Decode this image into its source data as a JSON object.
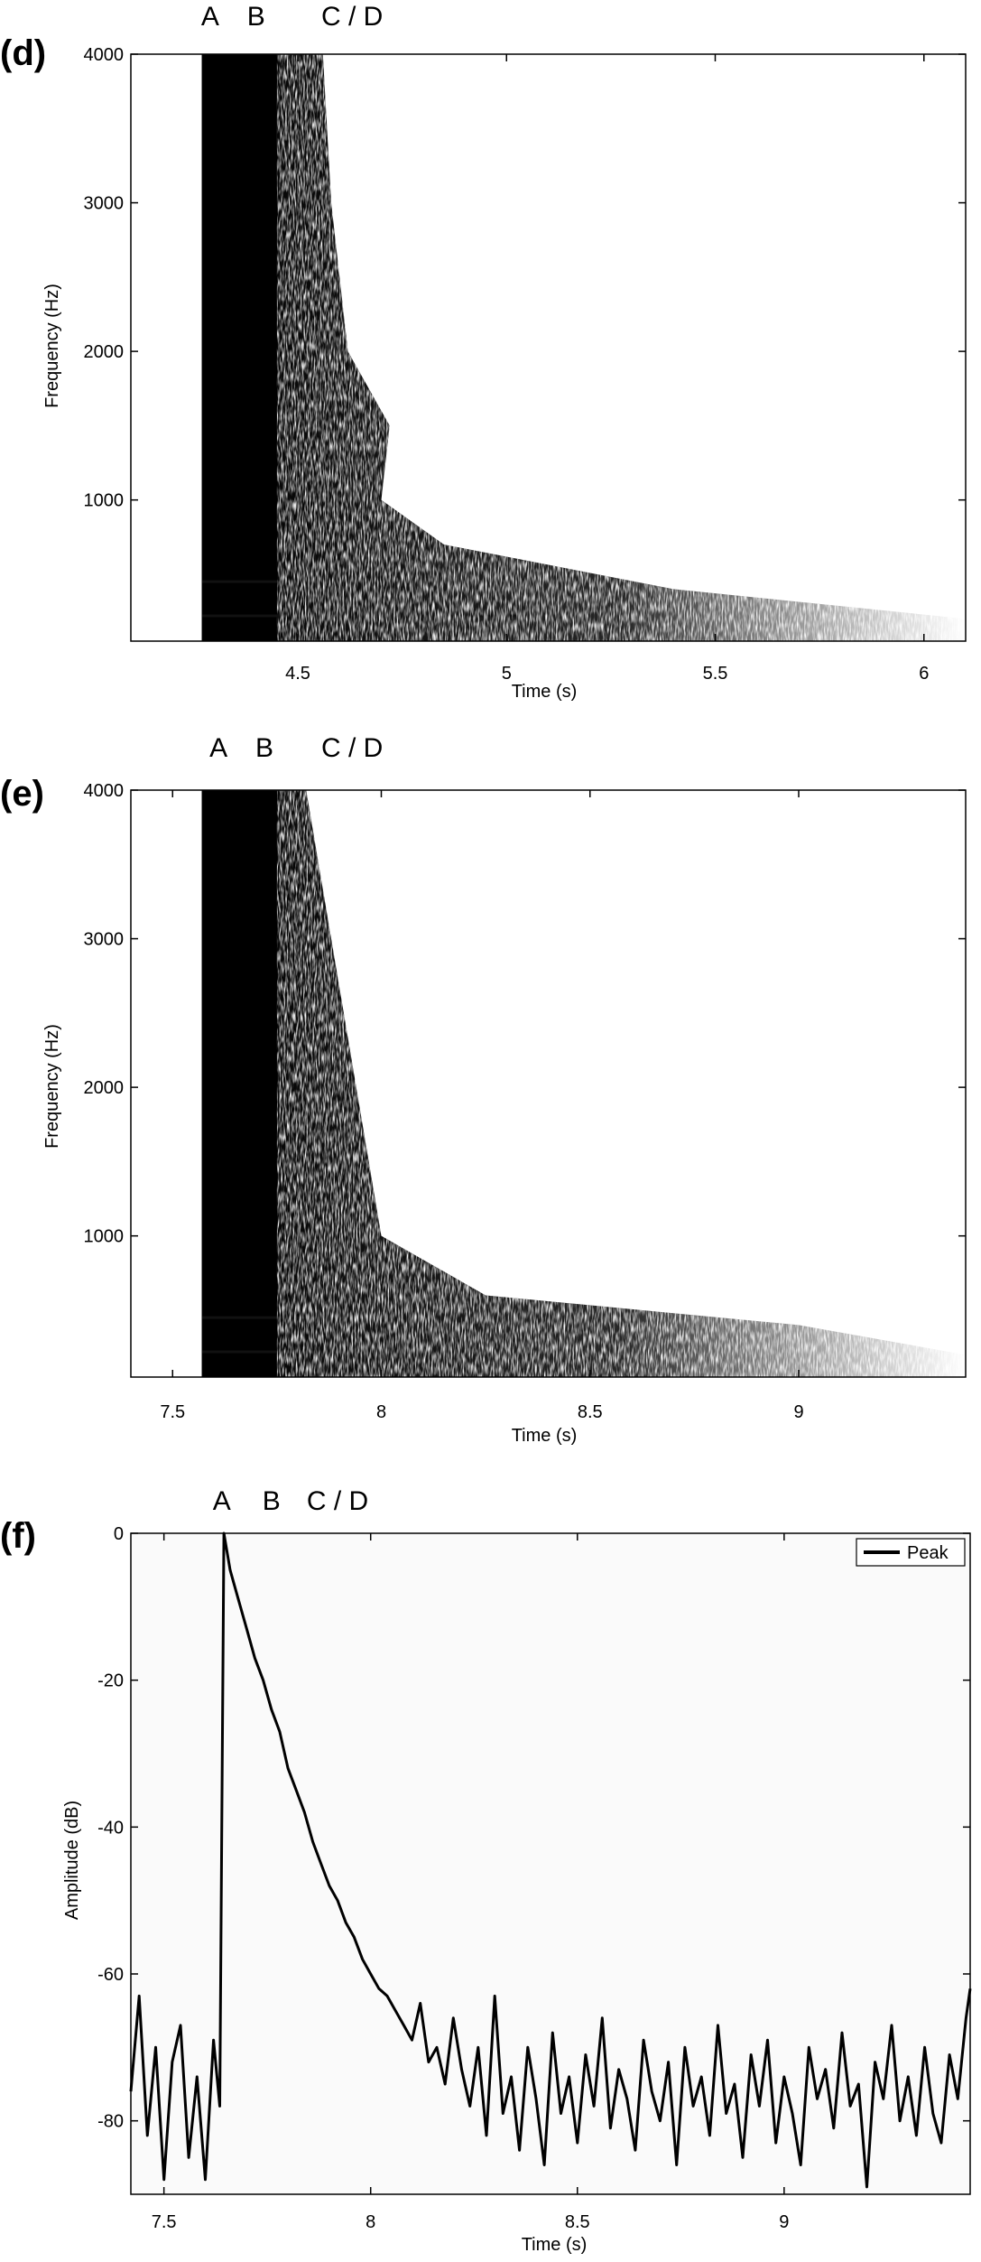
{
  "chart_data": [
    {
      "panel": "(d)",
      "type": "heatmap",
      "xlabel": "Time (s)",
      "ylabel": "Frequency (Hz)",
      "xlim": [
        4.1,
        6.1
      ],
      "ylim": [
        50,
        4000
      ],
      "xticks": [
        4.5,
        5,
        5.5,
        6
      ],
      "xtick_labels": [
        "4.5",
        "5",
        "5.5",
        "6"
      ],
      "yticks": [
        1000,
        2000,
        3000,
        4000
      ],
      "ytick_labels": [
        "1000",
        "2000",
        "3000",
        "4000"
      ],
      "event_labels": [
        {
          "label": "A",
          "x": 4.29
        },
        {
          "label": "B",
          "x": 4.4
        },
        {
          "label": "C / D",
          "x": 4.63
        }
      ],
      "onset_time": 4.27,
      "dense_end_time": 4.45,
      "decay_edge": [
        [
          4000,
          4.56
        ],
        [
          3000,
          4.58
        ],
        [
          2000,
          4.62
        ],
        [
          1500,
          4.72
        ],
        [
          1000,
          4.7
        ],
        [
          700,
          4.85
        ],
        [
          400,
          5.4
        ],
        [
          200,
          6.1
        ]
      ],
      "harmonic_lines": [
        {
          "freq": 220,
          "end_time": 5.05
        },
        {
          "freq": 450,
          "end_time": 4.75
        }
      ],
      "colormap": [
        "#ffffff",
        "#000000"
      ]
    },
    {
      "panel": "(e)",
      "type": "heatmap",
      "xlabel": "Time (s)",
      "ylabel": "Frequency (Hz)",
      "xlim": [
        7.4,
        9.4
      ],
      "ylim": [
        50,
        4000
      ],
      "xticks": [
        7.5,
        8,
        8.5,
        9
      ],
      "xtick_labels": [
        "7.5",
        "8",
        "8.5",
        "9"
      ],
      "yticks": [
        1000,
        2000,
        3000,
        4000
      ],
      "ytick_labels": [
        "1000",
        "2000",
        "3000",
        "4000"
      ],
      "event_labels": [
        {
          "label": "A",
          "x": 7.61
        },
        {
          "label": "B",
          "x": 7.72
        },
        {
          "label": "C / D",
          "x": 7.93
        }
      ],
      "onset_time": 7.57,
      "dense_end_time": 7.75,
      "decay_edge": [
        [
          4000,
          7.82
        ],
        [
          3000,
          7.88
        ],
        [
          2000,
          7.94
        ],
        [
          1000,
          8.0
        ],
        [
          600,
          8.25
        ],
        [
          400,
          9.0
        ],
        [
          200,
          9.4
        ]
      ],
      "harmonic_lines": [
        {
          "freq": 220,
          "end_time": 8.2
        },
        {
          "freq": 450,
          "end_time": 7.95
        }
      ],
      "colormap": [
        "#ffffff",
        "#000000"
      ]
    },
    {
      "panel": "(f)",
      "type": "line",
      "xlabel": "Time (s)",
      "ylabel": "Amplitude (dB)",
      "xlim": [
        7.42,
        9.45
      ],
      "ylim": [
        -90,
        0
      ],
      "xticks": [
        7.5,
        8,
        8.5,
        9
      ],
      "xtick_labels": [
        "7.5",
        "8",
        "8.5",
        "9"
      ],
      "yticks": [
        -80,
        -60,
        -40,
        -20,
        0
      ],
      "ytick_labels": [
        "-80",
        "-60",
        "-40",
        "-20",
        "0"
      ],
      "event_labels": [
        {
          "label": "A",
          "x": 7.64
        },
        {
          "label": "B",
          "x": 7.76
        },
        {
          "label": "C / D",
          "x": 7.92
        }
      ],
      "legend": {
        "position": "top-right",
        "entries": [
          "Peak"
        ]
      },
      "series": [
        {
          "name": "Peak",
          "color": "#000000",
          "x": [
            7.42,
            7.44,
            7.46,
            7.48,
            7.5,
            7.52,
            7.54,
            7.56,
            7.58,
            7.6,
            7.62,
            7.635,
            7.645,
            7.66,
            7.68,
            7.7,
            7.72,
            7.74,
            7.76,
            7.78,
            7.8,
            7.82,
            7.84,
            7.86,
            7.88,
            7.9,
            7.92,
            7.94,
            7.96,
            7.98,
            8.0,
            8.02,
            8.04,
            8.06,
            8.08,
            8.1,
            8.12,
            8.14,
            8.16,
            8.18,
            8.2,
            8.22,
            8.24,
            8.26,
            8.28,
            8.3,
            8.32,
            8.34,
            8.36,
            8.38,
            8.4,
            8.42,
            8.44,
            8.46,
            8.48,
            8.5,
            8.52,
            8.54,
            8.56,
            8.58,
            8.6,
            8.62,
            8.64,
            8.66,
            8.68,
            8.7,
            8.72,
            8.74,
            8.76,
            8.78,
            8.8,
            8.82,
            8.84,
            8.86,
            8.88,
            8.9,
            8.92,
            8.94,
            8.96,
            8.98,
            9.0,
            9.02,
            9.04,
            9.06,
            9.08,
            9.1,
            9.12,
            9.14,
            9.16,
            9.18,
            9.2,
            9.22,
            9.24,
            9.26,
            9.28,
            9.3,
            9.32,
            9.34,
            9.36,
            9.38,
            9.4,
            9.42,
            9.44,
            9.45
          ],
          "values": [
            -76,
            -63,
            -82,
            -70,
            -88,
            -72,
            -67,
            -85,
            -74,
            -88,
            -69,
            -78,
            0,
            -5,
            -9,
            -13,
            -17,
            -20,
            -24,
            -27,
            -32,
            -35,
            -38,
            -42,
            -45,
            -48,
            -50,
            -53,
            -55,
            -58,
            -60,
            -62,
            -63,
            -65,
            -67,
            -69,
            -64,
            -72,
            -70,
            -75,
            -66,
            -73,
            -78,
            -70,
            -82,
            -63,
            -79,
            -74,
            -84,
            -70,
            -77,
            -86,
            -68,
            -79,
            -74,
            -83,
            -71,
            -78,
            -66,
            -81,
            -73,
            -77,
            -84,
            -69,
            -76,
            -80,
            -72,
            -86,
            -70,
            -78,
            -74,
            -82,
            -67,
            -79,
            -75,
            -85,
            -71,
            -78,
            -69,
            -83,
            -74,
            -79,
            -86,
            -70,
            -77,
            -73,
            -81,
            -68,
            -78,
            -75,
            -89,
            -72,
            -77,
            -67,
            -80,
            -74,
            -82,
            -70,
            -79,
            -83,
            -71,
            -77,
            -66,
            -62
          ]
        }
      ]
    }
  ]
}
